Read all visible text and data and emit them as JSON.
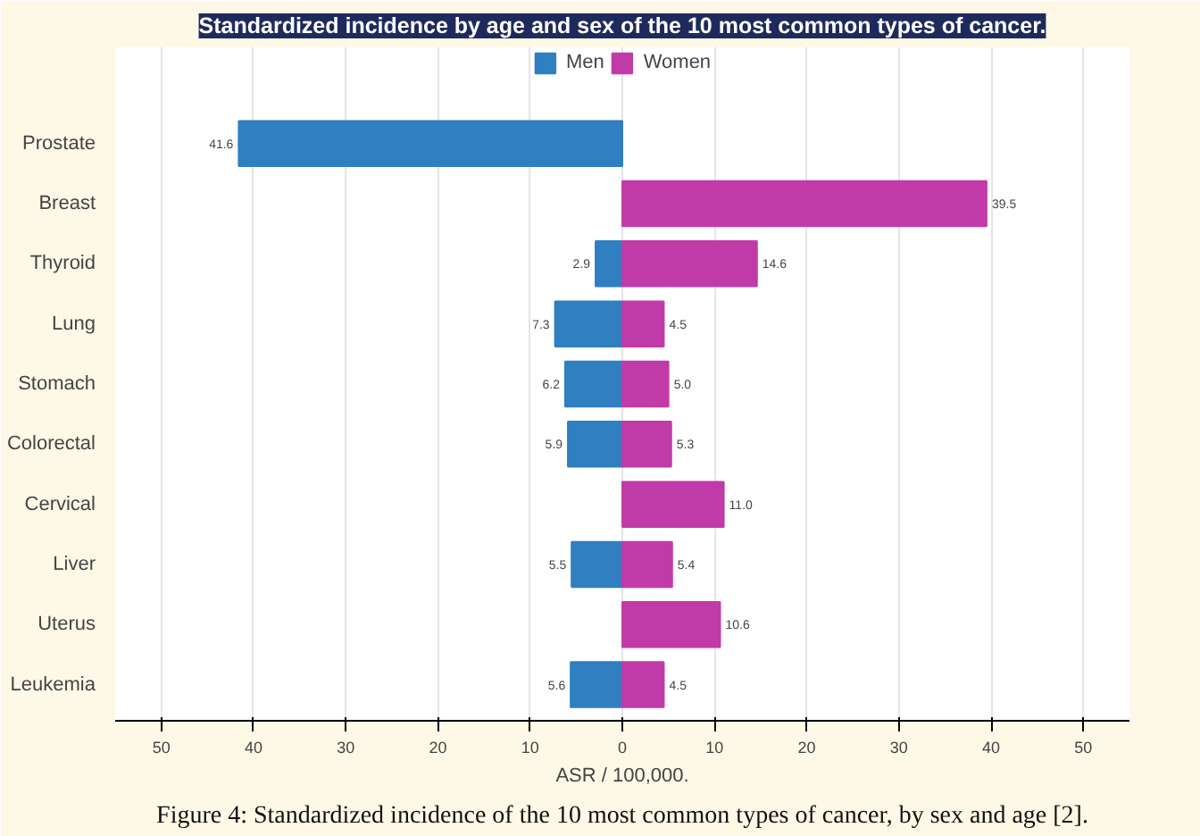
{
  "chart_data": {
    "type": "bar",
    "orientation": "horizontal",
    "title": "Standardized incidence by age and sex of the 10 most common types of cancer.",
    "xlabel": "ASR / 100,000.",
    "categories": [
      "Prostate",
      "Breast",
      "Thyroid",
      "Lung",
      "Stomach",
      "Colorectal",
      "Cervical",
      "Liver",
      "Uterus",
      "Leukemia"
    ],
    "series": [
      {
        "name": "Men",
        "color": "#2f7fc1",
        "values": [
          41.6,
          null,
          2.9,
          7.3,
          6.2,
          5.9,
          null,
          5.5,
          null,
          5.6
        ],
        "base": [
          -41.6,
          null,
          -2.9,
          -7.3,
          -6.2,
          -5.9,
          null,
          -5.5,
          null,
          -5.6
        ],
        "value_labels": [
          "41.6",
          null,
          "2.9",
          "7.3",
          "6.2",
          "5.9",
          null,
          "5.5",
          null,
          "5.6"
        ]
      },
      {
        "name": "Women",
        "color": "#c13ba8",
        "values": [
          null,
          39.5,
          14.6,
          4.5,
          5.0,
          5.3,
          11.0,
          5.4,
          10.6,
          4.5
        ],
        "value_labels": [
          null,
          "39.5",
          "14.6",
          "4.5",
          "5.0",
          "5.3",
          "11.0",
          "5.4",
          "10.6",
          "4.5"
        ]
      }
    ],
    "xlim": [
      -55,
      55
    ],
    "xticks": [
      {
        "value": -50,
        "label": "50"
      },
      {
        "value": -40,
        "label": "40"
      },
      {
        "value": -30,
        "label": "30"
      },
      {
        "value": -20,
        "label": "20"
      },
      {
        "value": -10,
        "label": "10"
      },
      0,
      10,
      20,
      30,
      40,
      50
    ],
    "grid": "x",
    "legend": "top",
    "annotations": [
      "Figure 4: Standardized incidence of the 10 most common types of cancer, by sex and age [2]."
    ]
  }
}
